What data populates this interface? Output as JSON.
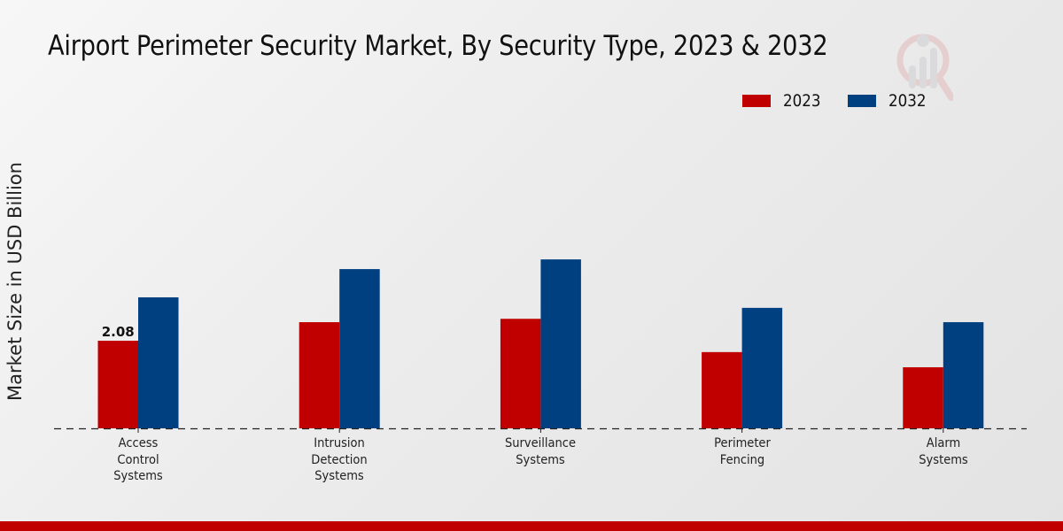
{
  "chart_data": {
    "type": "bar",
    "title": "Airport Perimeter Security Market, By Security Type, 2023 & 2032",
    "xlabel": "",
    "ylabel": "Market Size in USD Billion",
    "categories": [
      [
        "Access",
        "Control",
        "Systems"
      ],
      [
        "Intrusion",
        "Detection",
        "Systems"
      ],
      [
        "Surveillance",
        "Systems"
      ],
      [
        "Perimeter",
        "Fencing"
      ],
      [
        "Alarm",
        "Systems"
      ]
    ],
    "category_names": [
      "Access Control Systems",
      "Intrusion Detection Systems",
      "Surveillance Systems",
      "Perimeter Fencing",
      "Alarm Systems"
    ],
    "series": [
      {
        "name": "2023",
        "color": "#c00000",
        "values": [
          2.08,
          2.52,
          2.6,
          1.81,
          1.45
        ]
      },
      {
        "name": "2032",
        "color": "#004080",
        "values": [
          3.11,
          3.78,
          4.01,
          2.86,
          2.52
        ]
      }
    ],
    "data_labels": [
      {
        "series": 0,
        "index": 0,
        "text": "2.08"
      }
    ],
    "ylim": [
      0,
      8.3
    ],
    "grid": false,
    "y_ticks_visible": false,
    "baseline": "dashed",
    "legend": {
      "placement": "top-right",
      "entries": [
        "2023",
        "2032"
      ]
    }
  },
  "branding": {
    "watermark_icon": "magnifier-bar-chart-icon",
    "footer_strip_color": "#c00000"
  }
}
